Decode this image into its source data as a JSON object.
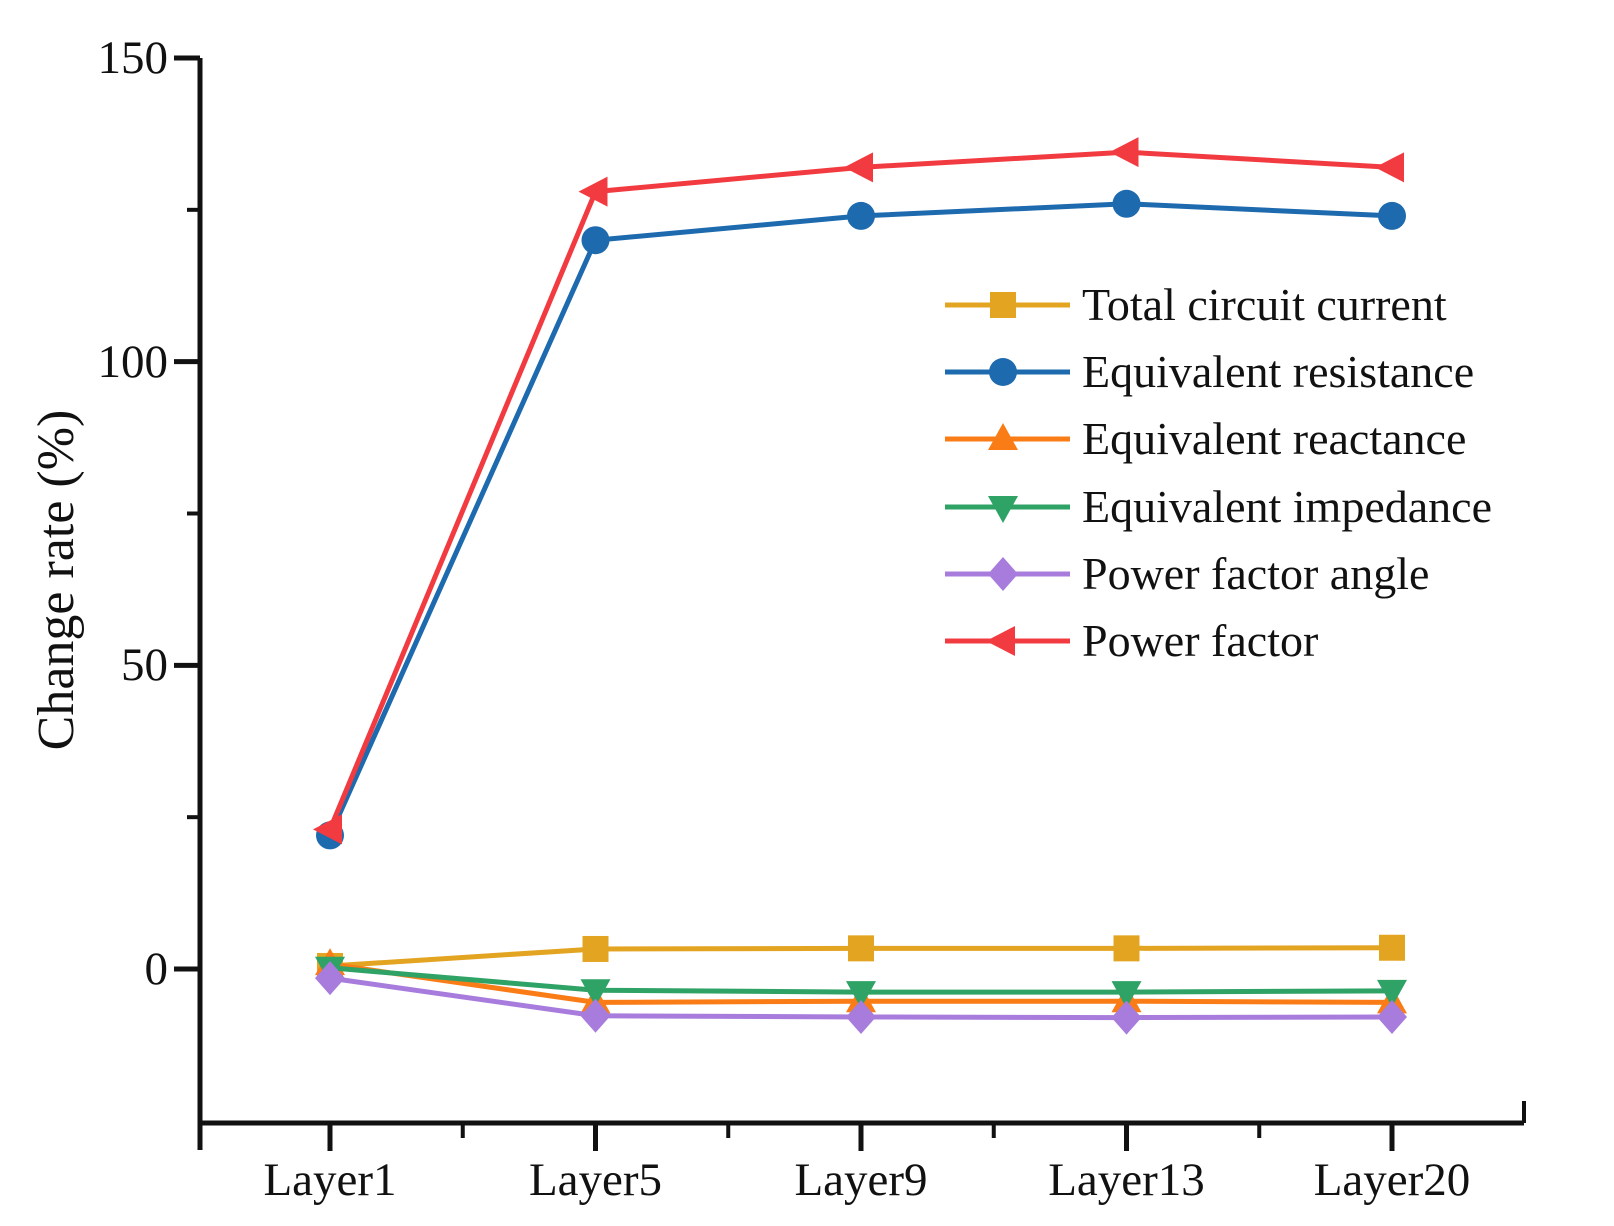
{
  "chart_data": {
    "type": "line",
    "title": "",
    "xlabel": "",
    "ylabel": "Change rate (%)",
    "categories": [
      "Layer1",
      "Layer5",
      "Layer9",
      "Layer13",
      "Layer20"
    ],
    "yticks": [
      0,
      50,
      100,
      150
    ],
    "yminorticks": [
      25,
      75,
      125
    ],
    "ylim": [
      -25,
      150
    ],
    "grid": false,
    "legend_position": "upper-right-inside",
    "axis_color": "#111111",
    "series": [
      {
        "name": "Total circuit current",
        "marker": "square",
        "color": "#E3A422",
        "values": [
          0.5,
          3.3,
          3.4,
          3.4,
          3.5
        ]
      },
      {
        "name": "Equivalent resistance",
        "marker": "circle",
        "color": "#1E6AAE",
        "values": [
          22,
          120,
          124,
          126,
          124
        ]
      },
      {
        "name": "Equivalent reactance",
        "marker": "triangle-up",
        "color": "#F97C16",
        "values": [
          0.8,
          -5.5,
          -5.3,
          -5.3,
          -5.5
        ]
      },
      {
        "name": "Equivalent impedance",
        "marker": "triangle-down",
        "color": "#2FA266",
        "values": [
          0.2,
          -3.5,
          -3.8,
          -3.8,
          -3.6
        ]
      },
      {
        "name": "Power factor angle",
        "marker": "diamond",
        "color": "#A87CDC",
        "values": [
          -1.5,
          -7.7,
          -7.9,
          -8.0,
          -7.9
        ]
      },
      {
        "name": "Power factor",
        "marker": "triangle-left",
        "color": "#F23B40",
        "values": [
          23,
          128,
          132,
          134.5,
          132
        ]
      }
    ]
  }
}
